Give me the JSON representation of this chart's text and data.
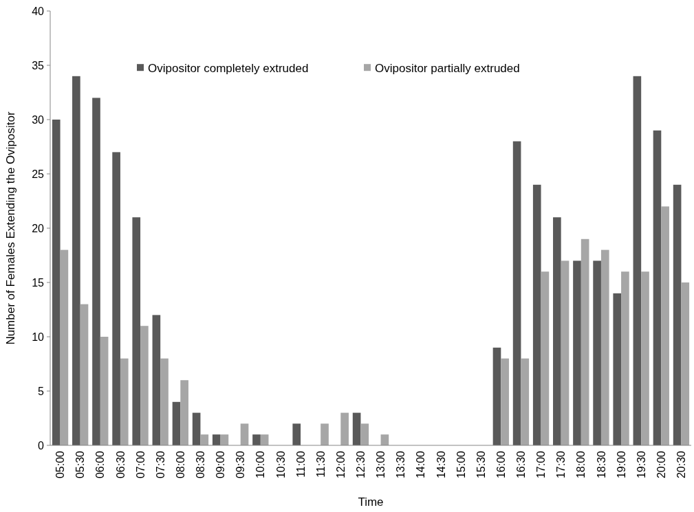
{
  "chart_data": {
    "type": "bar",
    "xlabel": "Time",
    "ylabel": "Number of Females Extending the Ovipositor",
    "categories": [
      "05:00",
      "05:30",
      "06:00",
      "06:30",
      "07:00",
      "07:30",
      "08:00",
      "08:30",
      "09:00",
      "09:30",
      "10:00",
      "10:30",
      "11:00",
      "11:30",
      "12:00",
      "12:30",
      "13:00",
      "13:30",
      "14:00",
      "14:30",
      "15:00",
      "15:30",
      "16:00",
      "16:30",
      "17:00",
      "17:30",
      "18:00",
      "18:30",
      "19:00",
      "19:30",
      "20:00",
      "20:30"
    ],
    "series": [
      {
        "name": "Ovipositor completely extruded",
        "color": "#595959",
        "values": [
          30,
          34,
          32,
          27,
          21,
          12,
          4,
          3,
          1,
          0,
          1,
          0,
          2,
          0,
          0,
          3,
          0,
          0,
          0,
          0,
          0,
          0,
          9,
          28,
          24,
          21,
          17,
          17,
          14,
          34,
          29,
          24
        ]
      },
      {
        "name": "Ovipositor partially extruded",
        "color": "#a6a6a6",
        "values": [
          18,
          13,
          10,
          8,
          11,
          8,
          6,
          1,
          1,
          2,
          1,
          0,
          0,
          2,
          3,
          2,
          1,
          0,
          0,
          0,
          0,
          0,
          8,
          8,
          16,
          17,
          19,
          18,
          16,
          16,
          22,
          15
        ]
      }
    ],
    "ylim": [
      0,
      40
    ],
    "yticks": [
      0,
      5,
      10,
      15,
      20,
      25,
      30,
      35,
      40
    ],
    "grid": false,
    "legend": "top"
  }
}
